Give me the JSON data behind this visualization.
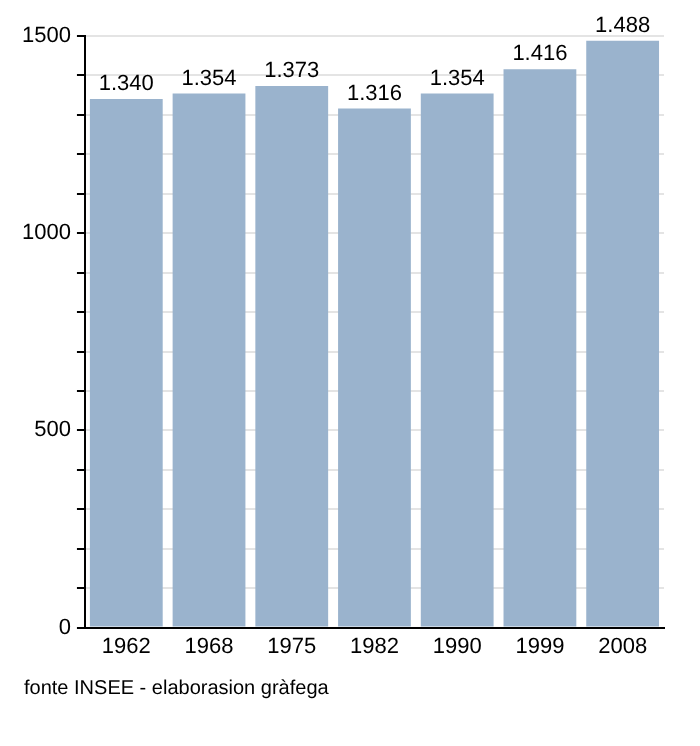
{
  "chart_data": {
    "type": "bar",
    "categories": [
      "1962",
      "1968",
      "1975",
      "1982",
      "1990",
      "1999",
      "2008"
    ],
    "values": [
      1340,
      1354,
      1373,
      1316,
      1354,
      1416,
      1488
    ],
    "value_labels": [
      "1.340",
      "1.354",
      "1.373",
      "1.316",
      "1.354",
      "1.416",
      "1.488"
    ],
    "color": "#9ab3cd",
    "ylim": [
      0,
      1500
    ],
    "yticks": [
      0,
      {
        "value": 100,
        "label": null
      },
      {
        "value": 200,
        "label": null
      },
      {
        "value": 300,
        "label": null
      },
      {
        "value": 400,
        "label": null
      },
      500,
      {
        "value": 600,
        "label": null
      },
      {
        "value": 700,
        "label": null
      },
      {
        "value": 800,
        "label": null
      },
      {
        "value": 900,
        "label": null
      },
      1000,
      {
        "value": 1100,
        "label": null
      },
      {
        "value": 1200,
        "label": null
      },
      {
        "value": 1300,
        "label": null
      },
      {
        "value": 1400,
        "label": null
      },
      1500
    ],
    "grid": "y",
    "legend": false,
    "annotations": [
      "fonte INSEE - elaborasion gràfega"
    ]
  }
}
